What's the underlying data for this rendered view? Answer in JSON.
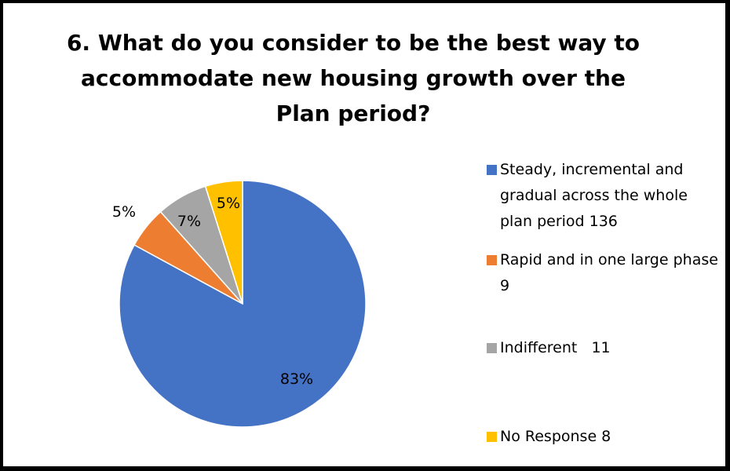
{
  "chart_data": {
    "type": "pie",
    "title": "6. What do you consider to be the best way to accommodate new housing growth over the Plan period?",
    "slices": [
      {
        "label": "Steady, incremental and gradual across the whole plan period 136",
        "value": 136,
        "percent_label": "83%",
        "color": "#4472C4"
      },
      {
        "label": "Rapid and in one large phase 9",
        "value": 9,
        "percent_label": "5%",
        "color": "#ED7D31"
      },
      {
        "label": "Indifferent   11",
        "value": 11,
        "percent_label": "7%",
        "color": "#A5A5A5"
      },
      {
        "label": "No Response 8",
        "value": 8,
        "percent_label": "5%",
        "color": "#FFC000"
      }
    ],
    "legend_position": "right"
  }
}
